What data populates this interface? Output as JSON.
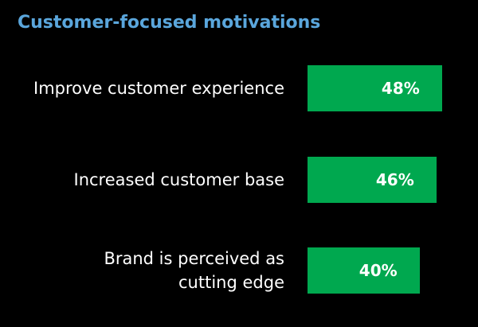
{
  "chart_data": {
    "type": "hbar",
    "title": "Customer-focused motivations",
    "categories": [
      "Improve customer experience",
      "Increased customer base",
      "Brand is perceived as\ncutting edge"
    ],
    "values": [
      48,
      46,
      40
    ],
    "value_labels": [
      "48%",
      "46%",
      "40%"
    ],
    "color": "#00a84f",
    "xlim": [
      0,
      60
    ]
  }
}
